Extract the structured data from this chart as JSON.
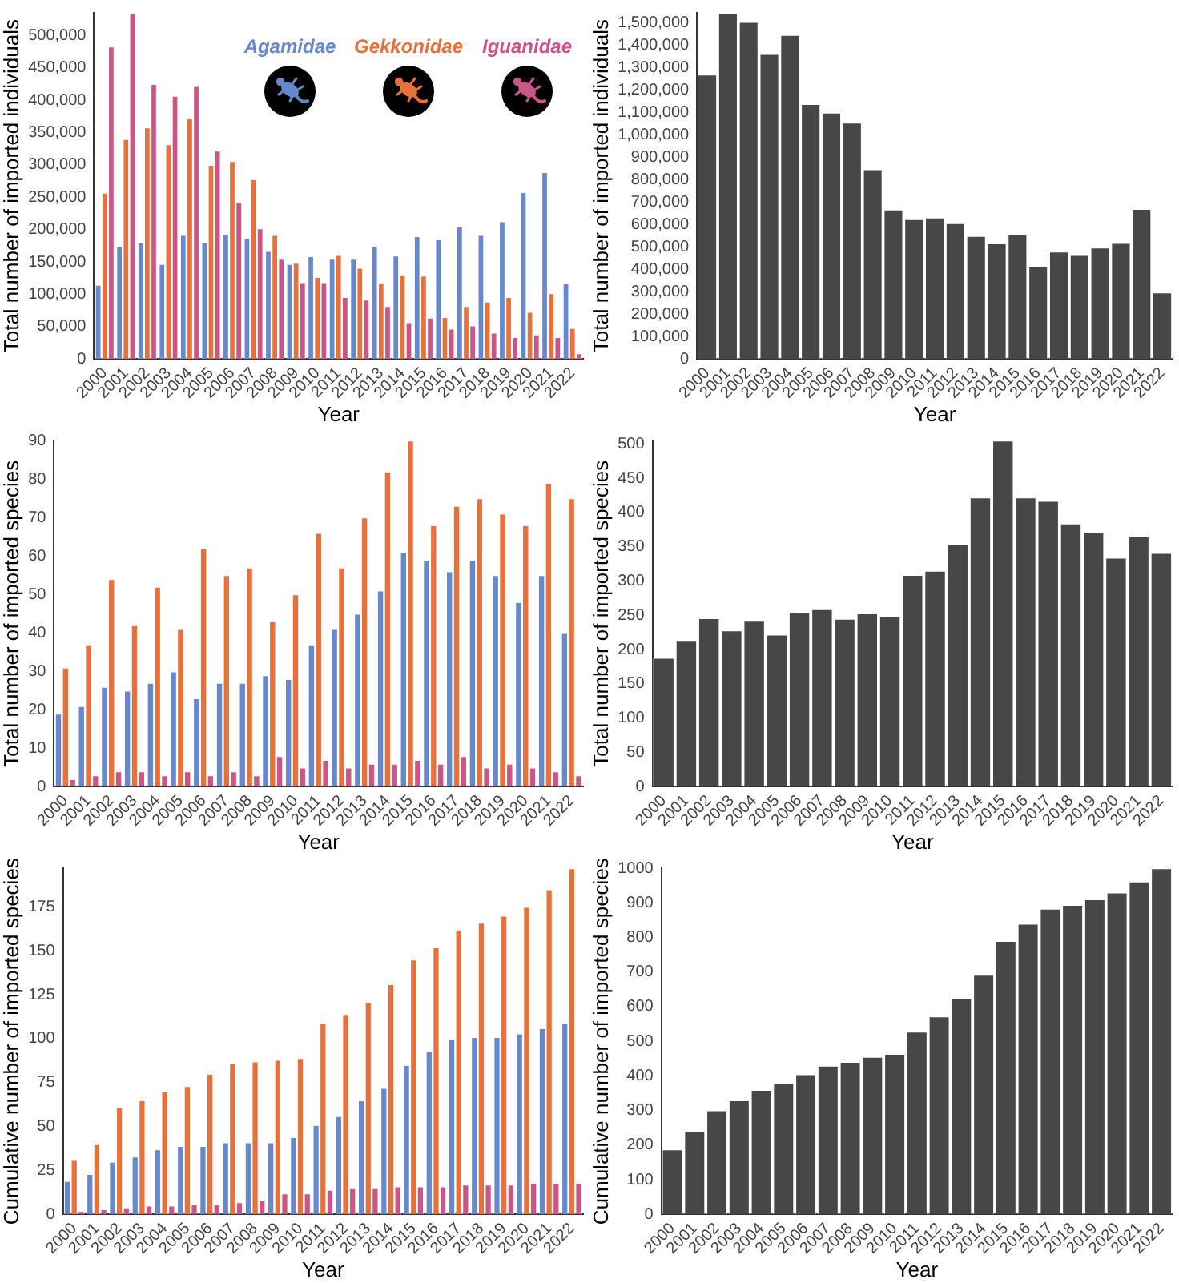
{
  "chart_data": [
    {
      "type": "bar",
      "xlabel": "Year",
      "ylabel": "Total number of imported individuals",
      "legend": "top",
      "categories": [
        "2000",
        "2001",
        "2002",
        "2003",
        "2004",
        "2005",
        "2006",
        "2007",
        "2008",
        "2009",
        "2010",
        "2011",
        "2012",
        "2013",
        "2014",
        "2015",
        "2016",
        "2017",
        "2018",
        "2019",
        "2020",
        "2021",
        "2022"
      ],
      "ylim": [
        0,
        535000
      ],
      "yticks": [
        {
          "value": 0,
          "label": "0"
        },
        {
          "value": 50000,
          "label": "50,000"
        },
        {
          "value": 100000,
          "label": "100,000"
        },
        {
          "value": 150000,
          "label": "150,000"
        },
        {
          "value": 200000,
          "label": "200,000"
        },
        {
          "value": 250000,
          "label": "250,000"
        },
        {
          "value": 300000,
          "label": "300,000"
        },
        {
          "value": 350000,
          "label": "350,000"
        },
        {
          "value": 400000,
          "label": "400,000"
        },
        {
          "value": 450000,
          "label": "450,000"
        },
        {
          "value": 500000,
          "label": "500,000"
        }
      ],
      "series": [
        {
          "name": "Agamidae",
          "color": "#6688cc",
          "values": [
            115000,
            174000,
            180000,
            147000,
            192000,
            180000,
            193000,
            187000,
            167000,
            147000,
            159000,
            155000,
            155000,
            175000,
            160000,
            190000,
            185000,
            205000,
            192000,
            213000,
            258000,
            289000,
            118000
          ]
        },
        {
          "name": "Gekkonidae",
          "color": "#e8703a",
          "values": [
            257000,
            340000,
            358000,
            332000,
            373000,
            300000,
            306000,
            278000,
            192000,
            149000,
            127000,
            161000,
            141000,
            118000,
            131000,
            129000,
            65000,
            82000,
            89000,
            96000,
            73000,
            102000,
            48000
          ]
        },
        {
          "name": "Iguanidae",
          "color": "#cc5588",
          "values": [
            483000,
            535000,
            425000,
            407000,
            422000,
            322000,
            243000,
            202000,
            155000,
            119000,
            119000,
            96000,
            92000,
            82000,
            57000,
            64000,
            47000,
            52000,
            41000,
            34000,
            38000,
            34000,
            9000
          ]
        }
      ]
    },
    {
      "type": "bar",
      "xlabel": "Year",
      "ylabel": "Total number of imported individuals",
      "categories": [
        "2000",
        "2001",
        "2002",
        "2003",
        "2004",
        "2005",
        "2006",
        "2007",
        "2008",
        "2009",
        "2010",
        "2011",
        "2012",
        "2013",
        "2014",
        "2015",
        "2016",
        "2017",
        "2018",
        "2019",
        "2020",
        "2021",
        "2022"
      ],
      "ylim": [
        0,
        1545000
      ],
      "yticks": [
        {
          "value": 0,
          "label": "0"
        },
        {
          "value": 100000,
          "label": "100,000"
        },
        {
          "value": 200000,
          "label": "200,000"
        },
        {
          "value": 300000,
          "label": "300,000"
        },
        {
          "value": 400000,
          "label": "400,000"
        },
        {
          "value": 500000,
          "label": "500,000"
        },
        {
          "value": 600000,
          "label": "600,000"
        },
        {
          "value": 700000,
          "label": "700,000"
        },
        {
          "value": 800000,
          "label": "800,000"
        },
        {
          "value": 900000,
          "label": "900,000"
        },
        {
          "value": 1000000,
          "label": "1,000,000"
        },
        {
          "value": 1100000,
          "label": "1,100,000"
        },
        {
          "value": 1200000,
          "label": "1,200,000"
        },
        {
          "value": 1300000,
          "label": "1,300,000"
        },
        {
          "value": 1400000,
          "label": "1,400,000"
        },
        {
          "value": 1500000,
          "label": "1,500,000"
        }
      ],
      "color": "#474747",
      "values": [
        1270000,
        1545000,
        1505000,
        1362000,
        1447000,
        1138000,
        1100000,
        1055000,
        847000,
        668000,
        625000,
        632000,
        607000,
        550000,
        517000,
        558000,
        413000,
        480000,
        465000,
        498000,
        518000,
        670000,
        298000
      ]
    },
    {
      "type": "bar",
      "xlabel": "Year",
      "ylabel": "Total number of imported species",
      "categories": [
        "2000",
        "2001",
        "2002",
        "2003",
        "2004",
        "2005",
        "2006",
        "2007",
        "2008",
        "2009",
        "2010",
        "2011",
        "2012",
        "2013",
        "2014",
        "2015",
        "2016",
        "2017",
        "2018",
        "2019",
        "2020",
        "2021",
        "2022"
      ],
      "ylim": [
        0,
        90
      ],
      "yticks": [
        0,
        10,
        20,
        30,
        40,
        50,
        60,
        70,
        80,
        90
      ],
      "series": [
        {
          "color": "#6688cc",
          "values": [
            19,
            21,
            26,
            25,
            27,
            30,
            23,
            27,
            27,
            29,
            28,
            37,
            41,
            45,
            51,
            61,
            59,
            56,
            59,
            55,
            48,
            55,
            40
          ]
        },
        {
          "color": "#e8703a",
          "values": [
            31,
            37,
            54,
            42,
            52,
            41,
            62,
            55,
            57,
            43,
            50,
            66,
            57,
            70,
            82,
            90,
            68,
            73,
            75,
            71,
            68,
            79,
            75
          ]
        },
        {
          "color": "#cc5588",
          "values": [
            2,
            3,
            4,
            4,
            3,
            4,
            3,
            4,
            3,
            8,
            5,
            7,
            5,
            6,
            6,
            7,
            6,
            8,
            5,
            6,
            5,
            4,
            3
          ]
        }
      ]
    },
    {
      "type": "bar",
      "xlabel": "Year",
      "ylabel": "Total number of imported species",
      "categories": [
        "2000",
        "2001",
        "2002",
        "2003",
        "2004",
        "2005",
        "2006",
        "2007",
        "2008",
        "2009",
        "2010",
        "2011",
        "2012",
        "2013",
        "2014",
        "2015",
        "2016",
        "2017",
        "2018",
        "2019",
        "2020",
        "2021",
        "2022"
      ],
      "ylim": [
        0,
        505
      ],
      "yticks": [
        0,
        50,
        100,
        150,
        200,
        250,
        300,
        350,
        400,
        450,
        500
      ],
      "color": "#474747",
      "values": [
        188,
        214,
        246,
        228,
        242,
        222,
        255,
        259,
        245,
        253,
        249,
        309,
        315,
        354,
        422,
        505,
        422,
        417,
        384,
        372,
        334,
        365,
        341
      ]
    },
    {
      "type": "bar",
      "xlabel": "Year",
      "ylabel": "Cumulative number of imported species",
      "categories": [
        "2000",
        "2001",
        "2002",
        "2003",
        "2004",
        "2005",
        "2006",
        "2007",
        "2008",
        "2009",
        "2010",
        "2011",
        "2012",
        "2013",
        "2014",
        "2015",
        "2016",
        "2017",
        "2018",
        "2019",
        "2020",
        "2021",
        "2022"
      ],
      "ylim": [
        0,
        197
      ],
      "yticks": [
        0,
        25,
        50,
        75,
        100,
        125,
        150,
        175
      ],
      "series": [
        {
          "color": "#6688cc",
          "values": [
            19,
            23,
            30,
            33,
            37,
            39,
            39,
            41,
            41,
            41,
            44,
            51,
            56,
            65,
            72,
            85,
            93,
            100,
            101,
            101,
            103,
            106,
            109
          ]
        },
        {
          "color": "#e8703a",
          "values": [
            31,
            40,
            61,
            65,
            70,
            73,
            80,
            86,
            87,
            88,
            89,
            109,
            114,
            121,
            131,
            145,
            152,
            162,
            166,
            170,
            175,
            185,
            197
          ]
        },
        {
          "color": "#cc5588",
          "values": [
            2,
            3,
            4,
            5,
            5,
            6,
            6,
            7,
            8,
            12,
            12,
            14,
            15,
            15,
            16,
            16,
            16,
            17,
            17,
            17,
            18,
            18,
            18
          ]
        }
      ]
    },
    {
      "type": "bar",
      "xlabel": "Year",
      "ylabel": "Cumulative number of imported species",
      "categories": [
        "2000",
        "2001",
        "2002",
        "2003",
        "2004",
        "2005",
        "2006",
        "2007",
        "2008",
        "2009",
        "2010",
        "2011",
        "2012",
        "2013",
        "2014",
        "2015",
        "2016",
        "2017",
        "2018",
        "2019",
        "2020",
        "2021",
        "2022"
      ],
      "ylim": [
        0,
        1000
      ],
      "yticks": [
        0,
        100,
        200,
        300,
        400,
        500,
        600,
        700,
        800,
        900,
        1000
      ],
      "color": "#474747",
      "values": [
        188,
        242,
        301,
        330,
        360,
        380,
        405,
        430,
        441,
        455,
        464,
        528,
        572,
        626,
        692,
        790,
        840,
        883,
        894,
        910,
        930,
        962,
        1000
      ]
    }
  ]
}
